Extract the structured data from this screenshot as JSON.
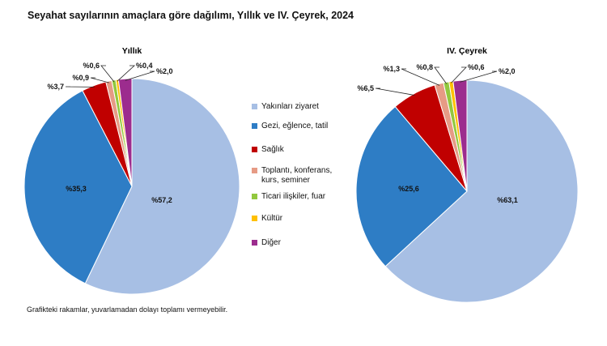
{
  "page": {
    "title": "Seyahat sayılarının amaçlara göre dağılımı, Yıllık ve IV. Çeyrek, 2024",
    "footnote": "Grafikteki rakamlar, yuvarlamadan dolayı toplamı vermeyebilir."
  },
  "legend": [
    {
      "label": "Yakınları ziyaret",
      "color": "#A7BFE4"
    },
    {
      "label": "Gezi, eğlence, tatil",
      "color": "#2E7DC5"
    },
    {
      "label": "Sağlık",
      "color": "#C00000"
    },
    {
      "label": "Toplantı, konferans,\nkurs, seminer",
      "color": "#E69B85"
    },
    {
      "label": "Ticari ilişkiler, fuar",
      "color": "#92C83E"
    },
    {
      "label": "Kültür",
      "color": "#FFC000"
    },
    {
      "label": "Diğer",
      "color": "#9C2C8E"
    }
  ],
  "chart_data": [
    {
      "type": "pie",
      "title": "Yıllık",
      "categories": [
        "Yakınları ziyaret",
        "Gezi, eğlence, tatil",
        "Sağlık",
        "Toplantı, konferans, kurs, seminer",
        "Ticari ilişkiler, fuar",
        "Kültür",
        "Diğer"
      ],
      "values": [
        57.2,
        35.3,
        3.7,
        0.9,
        0.6,
        0.4,
        2.0
      ],
      "labels": [
        "%57,2",
        "%35,3",
        "%3,7",
        "%0,9",
        "%0,6",
        "%0,4",
        "%2,0"
      ]
    },
    {
      "type": "pie",
      "title": "IV. Çeyrek",
      "categories": [
        "Yakınları ziyaret",
        "Gezi, eğlence, tatil",
        "Sağlık",
        "Toplantı, konferans, kurs, seminer",
        "Ticari ilişkiler, fuar",
        "Kültür",
        "Diğer"
      ],
      "values": [
        63.1,
        25.6,
        6.5,
        1.3,
        0.8,
        0.6,
        2.0
      ],
      "labels": [
        "%63,1",
        "%25,6",
        "%6,5",
        "%1,3",
        "%0,8",
        "%0,6",
        "%2,0"
      ]
    }
  ]
}
